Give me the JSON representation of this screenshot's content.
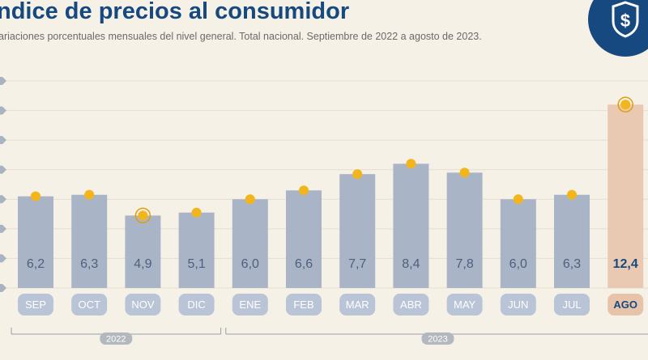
{
  "header": {
    "title": "ndice de precios al consumidor",
    "subtitle": "ariaciones porcentuales mensuales del nivel general. Total nacional. Septiembre de 2022 a agosto de 2023.",
    "logo_icon": "dollar-shield-icon"
  },
  "chart_data": {
    "type": "bar",
    "categories": [
      "SEP",
      "OCT",
      "NOV",
      "DIC",
      "ENE",
      "FEB",
      "MAR",
      "ABR",
      "MAY",
      "JUN",
      "JUL",
      "AGO"
    ],
    "values": [
      6.2,
      6.3,
      4.9,
      5.1,
      6.0,
      6.6,
      7.7,
      8.4,
      7.8,
      6.0,
      6.3,
      12.4
    ],
    "value_labels": [
      "6,2",
      "6,3",
      "4,9",
      "5,1",
      "6,0",
      "6,6",
      "7,7",
      "8,4",
      "7,8",
      "6,0",
      "6,3",
      "12,4"
    ],
    "highlight_index": 11,
    "ylim": [
      0,
      14
    ],
    "year_groups": [
      {
        "label": "2022",
        "from": 0,
        "to": 3
      },
      {
        "label": "2023",
        "from": 4,
        "to": 11
      }
    ],
    "grid": true,
    "colors": {
      "bar": "#a9b5c7",
      "bar_highlight": "#e9c9b2",
      "value_text": "#4e5f7e",
      "value_text_highlight": "#16497f",
      "marker": "#f3b51c",
      "marker_stroke": "#e39c0d",
      "tick_bg": "#b9c4d6",
      "tick_bg_highlight": "#e7c3a9",
      "tick_text": "#ffffff",
      "tick_text_highlight": "#16497f",
      "year_line": "#9aa0a8",
      "year_badge": "#b3b8bf"
    }
  }
}
